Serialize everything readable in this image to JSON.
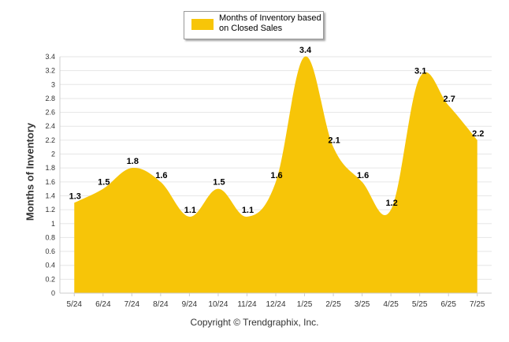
{
  "colors": {
    "fill": "#F7C508",
    "grid": "#E6E6E6",
    "axis": "#CCCCCC",
    "text": "#333333"
  },
  "legend": {
    "label": "Months of Inventory based\non Closed Sales"
  },
  "footer": {
    "text": "Copyright © Trendgraphix, Inc."
  },
  "chart_data": {
    "type": "area",
    "title": "",
    "xlabel": "",
    "ylabel": "Months of Inventory",
    "categories": [
      "5/24",
      "6/24",
      "7/24",
      "8/24",
      "9/24",
      "10/24",
      "11/24",
      "12/24",
      "1/25",
      "2/25",
      "3/25",
      "4/25",
      "5/25",
      "6/25",
      "7/25"
    ],
    "series": [
      {
        "name": "Months of Inventory based on Closed Sales",
        "values": [
          1.3,
          1.5,
          1.8,
          1.6,
          1.1,
          1.5,
          1.1,
          1.6,
          3.4,
          2.1,
          1.6,
          1.2,
          3.1,
          2.7,
          2.2
        ]
      }
    ],
    "ylim": [
      0,
      3.4
    ],
    "yticks": [
      0,
      0.2,
      0.4,
      0.6,
      0.8,
      1,
      1.2,
      1.4,
      1.6,
      1.8,
      2,
      2.2,
      2.4,
      2.6,
      2.8,
      3,
      3.2,
      3.4
    ],
    "grid": true,
    "legend_position": "top-center",
    "data_labels": true
  }
}
